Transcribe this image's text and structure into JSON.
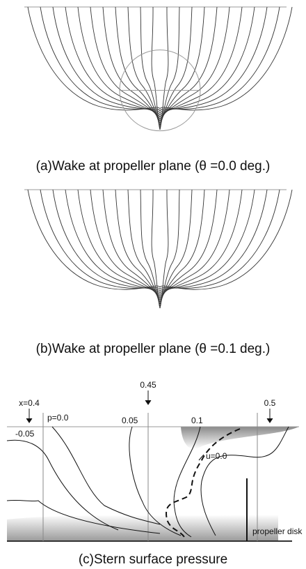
{
  "panels": [
    {
      "caption": "(a)Wake at propeller plane (θ =0.0 deg.)"
    },
    {
      "caption": "(b)Wake at propeller plane (θ =0.1 deg.)"
    },
    {
      "caption": "(c)Stern surface pressure",
      "stations": [
        "x=0.4",
        "0.45",
        "0.5"
      ],
      "labels": [
        "p=0.0",
        "0.05",
        "0.1",
        "u=0.0",
        "-0.05",
        "propeller disk"
      ]
    }
  ]
}
